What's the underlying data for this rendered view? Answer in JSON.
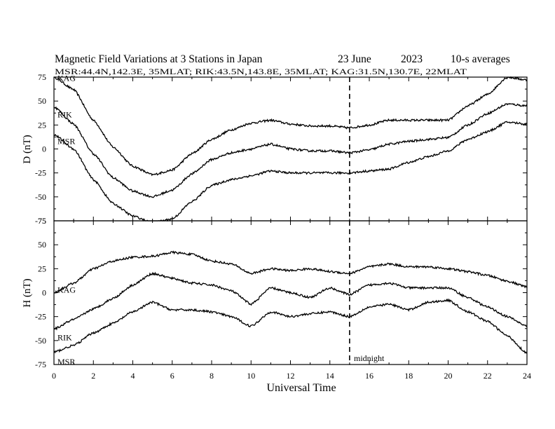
{
  "title": "Magnetic Field Variations at 3 Stations in Japan",
  "date_label": "23 June",
  "year_label": "2023",
  "averaging_label": "10-s averages",
  "subtitle": "MSR:44.4N,142.3E, 35MLAT;   RIK:43.5N,143.8E, 35MLAT;   KAG:31.5N,130.7E, 22MLAT",
  "xlabel": "Universal Time",
  "midnight_label": "midnight",
  "chart_data": [
    {
      "type": "line",
      "panel": "D",
      "ylabel": "D (nT)",
      "xlim": [
        0,
        24
      ],
      "ylim": [
        -75,
        75
      ],
      "yticks": [
        75,
        50,
        25,
        0,
        -25,
        -50,
        -75
      ],
      "xticks": [
        0,
        2,
        4,
        6,
        8,
        10,
        12,
        14,
        16,
        18,
        20,
        22,
        24
      ],
      "x": [
        0,
        1,
        2,
        3,
        4,
        5,
        6,
        7,
        8,
        9,
        10,
        11,
        12,
        13,
        14,
        15,
        16,
        17,
        18,
        19,
        20,
        21,
        22,
        23,
        24
      ],
      "series": [
        {
          "name": "KAG",
          "values": [
            75,
            62,
            30,
            2,
            -18,
            -27,
            -22,
            -5,
            10,
            20,
            27,
            30,
            26,
            24,
            24,
            22,
            25,
            30,
            30,
            30,
            30,
            45,
            57,
            75,
            72
          ]
        },
        {
          "name": "RIK",
          "values": [
            44,
            26,
            -5,
            -30,
            -44,
            -50,
            -43,
            -26,
            -11,
            -4,
            0,
            5,
            0,
            -2,
            -2,
            -4,
            -1,
            5,
            8,
            10,
            12,
            25,
            37,
            47,
            45
          ]
        },
        {
          "name": "MSR",
          "values": [
            15,
            0,
            -32,
            -57,
            -70,
            -77,
            -73,
            -55,
            -38,
            -32,
            -28,
            -23,
            -25,
            -25,
            -25,
            -25,
            -23,
            -21,
            -14,
            -8,
            -2,
            10,
            18,
            28,
            26
          ]
        }
      ],
      "vline_x": 15
    },
    {
      "type": "line",
      "panel": "H",
      "ylabel": "H (nT)",
      "xlim": [
        0,
        24
      ],
      "ylim": [
        -75,
        75
      ],
      "yticks": [
        75,
        50,
        25,
        0,
        -25,
        -50,
        -75
      ],
      "xticks": [
        0,
        2,
        4,
        6,
        8,
        10,
        12,
        14,
        16,
        18,
        20,
        22,
        24
      ],
      "x": [
        0,
        1,
        2,
        3,
        4,
        5,
        6,
        7,
        8,
        9,
        10,
        11,
        12,
        13,
        14,
        15,
        16,
        17,
        18,
        19,
        20,
        21,
        22,
        23,
        24
      ],
      "series": [
        {
          "name": "KAG",
          "values": [
            0,
            10,
            25,
            33,
            37,
            38,
            42,
            40,
            33,
            30,
            20,
            25,
            23,
            25,
            22,
            20,
            27,
            30,
            27,
            27,
            25,
            22,
            18,
            12,
            6
          ]
        },
        {
          "name": "RIK",
          "values": [
            -38,
            -28,
            -17,
            -6,
            8,
            20,
            15,
            10,
            8,
            2,
            -12,
            5,
            0,
            -5,
            5,
            -2,
            8,
            10,
            5,
            5,
            5,
            -5,
            -15,
            -25,
            -35
          ]
        },
        {
          "name": "MSR",
          "values": [
            -62,
            -55,
            -42,
            -32,
            -20,
            -10,
            -18,
            -18,
            -20,
            -25,
            -35,
            -20,
            -25,
            -22,
            -20,
            -25,
            -15,
            -12,
            -18,
            -10,
            -8,
            -20,
            -30,
            -45,
            -63
          ]
        }
      ],
      "vline_x": 15
    }
  ],
  "line_color": "#000000"
}
